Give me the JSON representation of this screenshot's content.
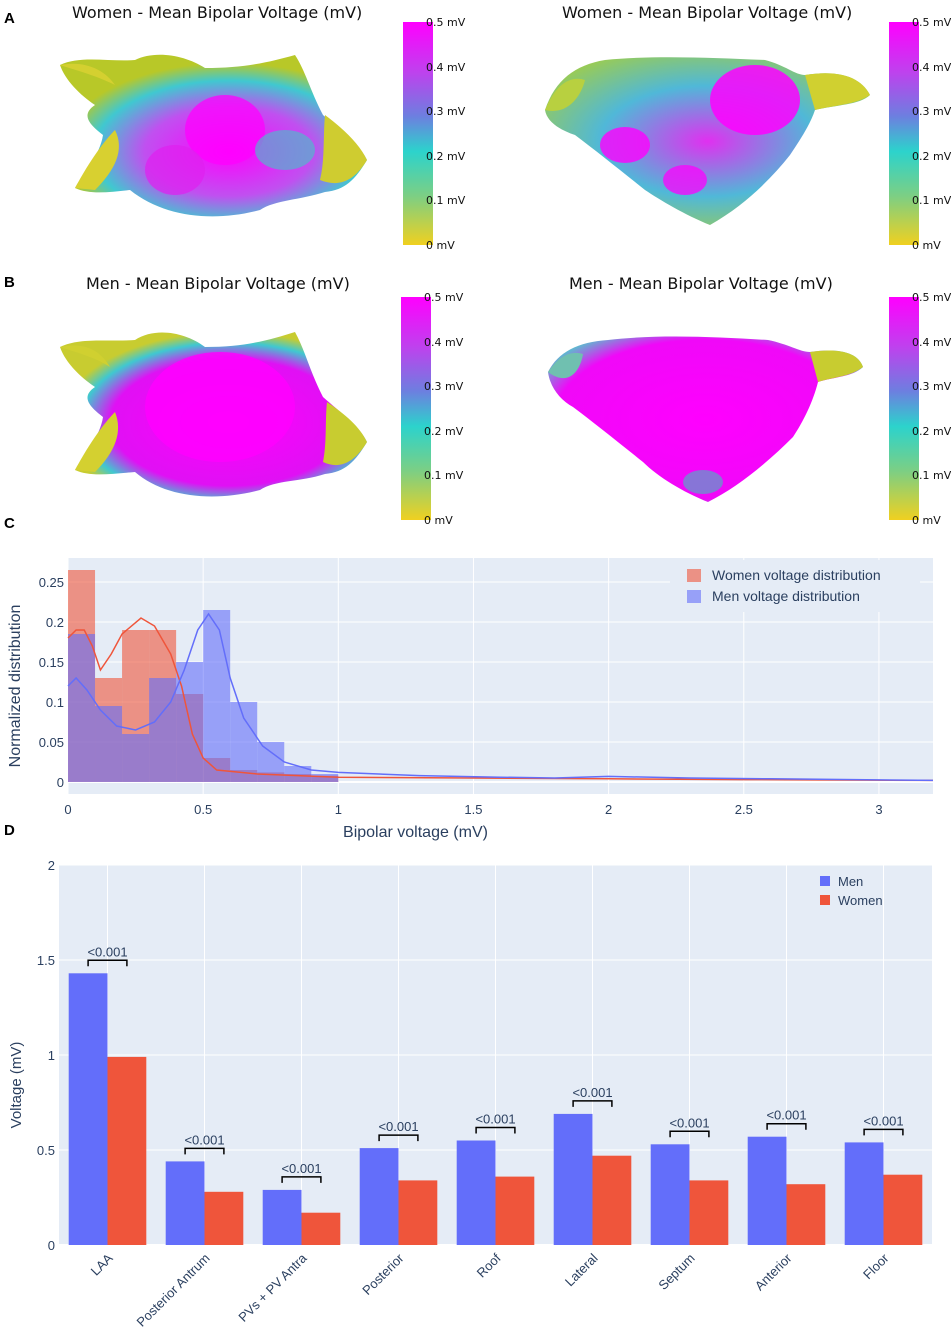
{
  "panels": {
    "A": {
      "letter": "A",
      "left_title": "Women - Mean Bipolar Voltage (mV)",
      "right_title": "Women - Mean Bipolar Voltage (mV)"
    },
    "B": {
      "letter": "B",
      "left_title": "Men - Mean Bipolar Voltage (mV)",
      "right_title": "Men - Mean Bipolar Voltage (mV)"
    },
    "C": {
      "letter": "C"
    },
    "D": {
      "letter": "D"
    }
  },
  "colorbar": {
    "ticks": [
      "0.5 mV",
      "0.4 mV",
      "0.3 mV",
      "0.2 mV",
      "0.1 mV",
      "0 mV"
    ],
    "colors": [
      "#ff00ff",
      "#c040ee",
      "#6e7ee0",
      "#2cd3cc",
      "#7ccf84",
      "#f0d020"
    ]
  },
  "chart_data": [
    {
      "type": "histogram",
      "id": "C",
      "xlabel": "Bipolar voltage (mV)",
      "ylabel": "Normalized distribution",
      "xlim": [
        0,
        3.2
      ],
      "ylim": [
        -0.015,
        0.28
      ],
      "xticks": [
        0,
        0.5,
        1,
        1.5,
        2,
        2.5,
        3
      ],
      "xtick_labels": [
        "0",
        "0.5",
        "1",
        "1.5",
        "2",
        "2.5",
        "3"
      ],
      "yticks": [
        0,
        0.05,
        0.1,
        0.15,
        0.2,
        0.25
      ],
      "ytick_labels": [
        "0",
        "0.05",
        "0.1",
        "0.15",
        "0.2",
        "0.25"
      ],
      "bin_width": 0.1,
      "bin_starts": [
        0,
        0.1,
        0.2,
        0.3,
        0.4,
        0.5,
        0.6,
        0.7,
        0.8,
        0.9
      ],
      "series": [
        {
          "name": "Women voltage distribution",
          "color": "#ef553b",
          "values": [
            0.265,
            0.13,
            0.19,
            0.19,
            0.11,
            0.03,
            0.015,
            0.012,
            0.01,
            0.008
          ],
          "kde": [
            [
              0,
              0.18
            ],
            [
              0.03,
              0.19
            ],
            [
              0.06,
              0.19
            ],
            [
              0.09,
              0.17
            ],
            [
              0.12,
              0.14
            ],
            [
              0.16,
              0.16
            ],
            [
              0.2,
              0.185
            ],
            [
              0.27,
              0.205
            ],
            [
              0.32,
              0.195
            ],
            [
              0.38,
              0.16
            ],
            [
              0.42,
              0.12
            ],
            [
              0.46,
              0.06
            ],
            [
              0.5,
              0.03
            ],
            [
              0.55,
              0.015
            ],
            [
              0.7,
              0.01
            ],
            [
              1,
              0.006
            ],
            [
              1.5,
              0.005
            ],
            [
              2,
              0.004
            ],
            [
              2.5,
              0.003
            ],
            [
              3.2,
              0.002
            ]
          ]
        },
        {
          "name": "Men voltage distribution",
          "color": "#636efa",
          "values": [
            0.185,
            0.095,
            0.06,
            0.13,
            0.15,
            0.215,
            0.1,
            0.05,
            0.02,
            0.01
          ],
          "kde": [
            [
              0,
              0.12
            ],
            [
              0.03,
              0.13
            ],
            [
              0.07,
              0.115
            ],
            [
              0.12,
              0.09
            ],
            [
              0.18,
              0.07
            ],
            [
              0.25,
              0.065
            ],
            [
              0.32,
              0.075
            ],
            [
              0.38,
              0.1
            ],
            [
              0.43,
              0.14
            ],
            [
              0.48,
              0.19
            ],
            [
              0.52,
              0.21
            ],
            [
              0.56,
              0.19
            ],
            [
              0.6,
              0.13
            ],
            [
              0.65,
              0.08
            ],
            [
              0.72,
              0.045
            ],
            [
              0.8,
              0.025
            ],
            [
              0.9,
              0.015
            ],
            [
              1,
              0.012
            ],
            [
              1.3,
              0.008
            ],
            [
              1.6,
              0.006
            ],
            [
              1.8,
              0.005
            ],
            [
              2,
              0.007
            ],
            [
              2.3,
              0.005
            ],
            [
              2.6,
              0.004
            ],
            [
              3.2,
              0.002
            ]
          ]
        }
      ]
    },
    {
      "type": "bar",
      "id": "D",
      "ylabel": "Voltage (mV)",
      "ylim": [
        0,
        2
      ],
      "yticks": [
        0,
        0.5,
        1,
        1.5,
        2
      ],
      "ytick_labels": [
        "0",
        "0.5",
        "1",
        "1.5",
        "2"
      ],
      "categories": [
        "LAA",
        "Posterior Antrum",
        "PVs + PV Antra",
        "Posterior",
        "Roof",
        "Lateral",
        "Septum",
        "Anterior",
        "Floor"
      ],
      "series": [
        {
          "name": "Men",
          "color": "#636efa",
          "values": [
            1.43,
            0.44,
            0.29,
            0.51,
            0.55,
            0.69,
            0.53,
            0.57,
            0.54
          ]
        },
        {
          "name": "Women",
          "color": "#ef553b",
          "values": [
            0.99,
            0.28,
            0.17,
            0.34,
            0.36,
            0.47,
            0.34,
            0.32,
            0.37
          ]
        }
      ],
      "annotations": [
        "<0.001",
        "<0.001",
        "<0.001",
        "<0.001",
        "<0.001",
        "<0.001",
        "<0.001",
        "<0.001",
        "<0.001"
      ]
    }
  ]
}
